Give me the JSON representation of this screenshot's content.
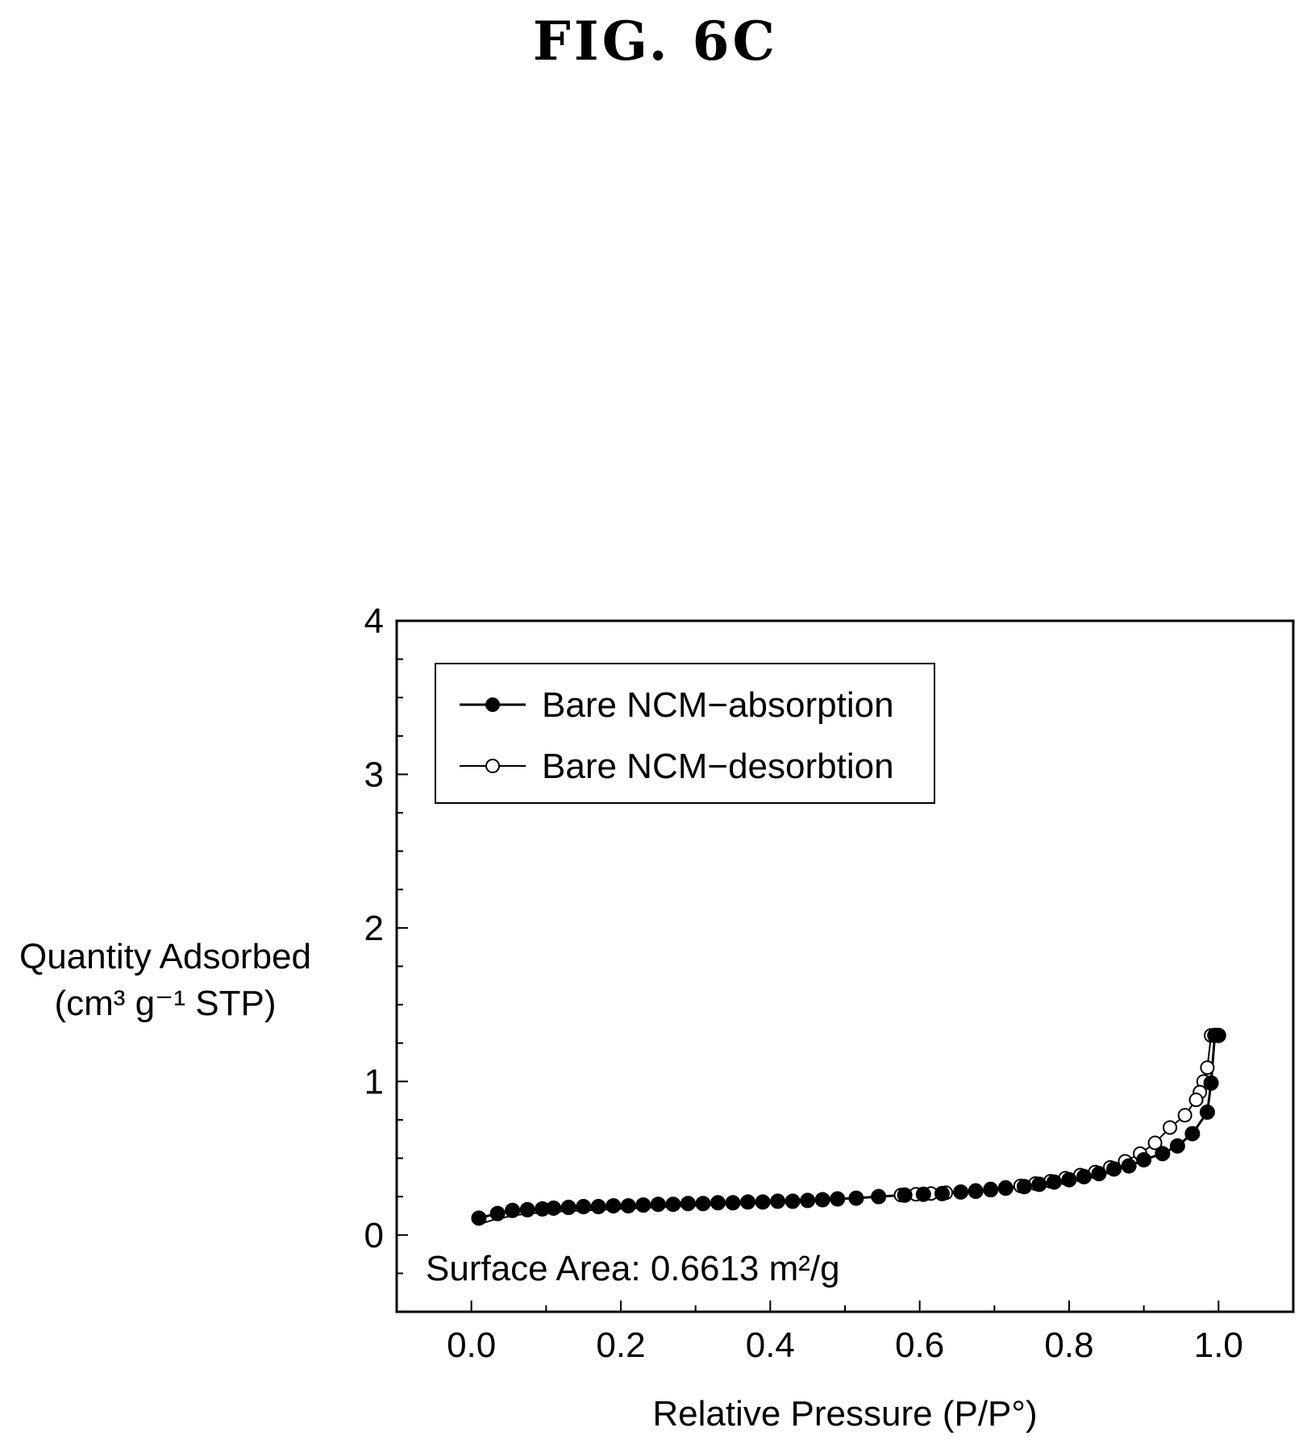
{
  "figure": {
    "title": "FIG. 6C"
  },
  "chart_data": {
    "type": "scatter",
    "xlabel": "Relative Pressure (P/P°)",
    "ylabel_line1": "Quantity Adsorbed",
    "ylabel_line2": "(cm³ g⁻¹ STP)",
    "xlim": [
      -0.1,
      1.1
    ],
    "ylim": [
      -0.5,
      4
    ],
    "xticks": [
      0.0,
      0.2,
      0.4,
      0.6,
      0.8,
      1.0
    ],
    "xtick_labels": [
      "0.0",
      "0.2",
      "0.4",
      "0.6",
      "0.8",
      "1.0"
    ],
    "yticks": [
      0,
      1,
      2,
      3,
      4
    ],
    "ytick_labels": [
      "0",
      "1",
      "2",
      "3",
      "4"
    ],
    "grid": false,
    "legend_position": "top-left",
    "annotation": "Surface Area: 0.6613 m²/g",
    "series": [
      {
        "name": "Bare NCM−absorption",
        "marker": "filled-circle",
        "x": [
          0.01,
          0.035,
          0.055,
          0.075,
          0.095,
          0.11,
          0.13,
          0.15,
          0.17,
          0.19,
          0.21,
          0.23,
          0.25,
          0.27,
          0.29,
          0.31,
          0.33,
          0.35,
          0.37,
          0.39,
          0.41,
          0.43,
          0.45,
          0.47,
          0.49,
          0.515,
          0.545,
          0.58,
          0.605,
          0.63,
          0.655,
          0.675,
          0.695,
          0.715,
          0.74,
          0.76,
          0.78,
          0.8,
          0.82,
          0.84,
          0.86,
          0.88,
          0.9,
          0.925,
          0.945,
          0.965,
          0.985,
          0.99,
          0.995,
          1.0
        ],
        "y": [
          0.11,
          0.14,
          0.16,
          0.165,
          0.17,
          0.175,
          0.18,
          0.185,
          0.185,
          0.19,
          0.19,
          0.195,
          0.2,
          0.2,
          0.205,
          0.205,
          0.21,
          0.21,
          0.215,
          0.215,
          0.22,
          0.22,
          0.225,
          0.23,
          0.235,
          0.24,
          0.25,
          0.26,
          0.265,
          0.27,
          0.28,
          0.285,
          0.295,
          0.305,
          0.315,
          0.33,
          0.345,
          0.36,
          0.38,
          0.4,
          0.43,
          0.45,
          0.49,
          0.53,
          0.58,
          0.66,
          0.8,
          0.99,
          1.3,
          1.3
        ]
      },
      {
        "name": "Bare NCM−desorbtion",
        "marker": "open-circle",
        "x": [
          0.99,
          0.985,
          0.98,
          0.975,
          0.97,
          0.955,
          0.935,
          0.915,
          0.895,
          0.875,
          0.855,
          0.835,
          0.815,
          0.795,
          0.775,
          0.755,
          0.735,
          0.715,
          0.695,
          0.675,
          0.655,
          0.635,
          0.615,
          0.595,
          0.575
        ],
        "y": [
          1.3,
          1.09,
          1.0,
          0.93,
          0.88,
          0.78,
          0.7,
          0.6,
          0.53,
          0.48,
          0.44,
          0.41,
          0.39,
          0.37,
          0.35,
          0.335,
          0.32,
          0.31,
          0.3,
          0.29,
          0.28,
          0.275,
          0.27,
          0.265,
          0.26
        ]
      }
    ],
    "desorption_tail": {
      "x": [
        0.575,
        0.5,
        0.4,
        0.3,
        0.2,
        0.1,
        0.06,
        0.03,
        0.01
      ],
      "y": [
        0.26,
        0.235,
        0.21,
        0.19,
        0.17,
        0.15,
        0.13,
        0.1,
        0.07
      ]
    }
  }
}
